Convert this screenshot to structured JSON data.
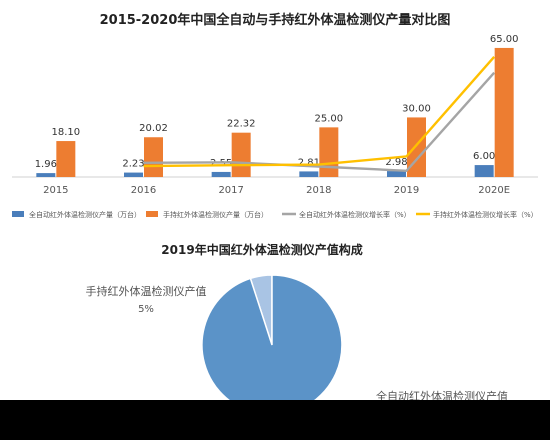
{
  "chart_data": [
    {
      "type": "bar",
      "title": "2015-2020年中国全自动与手持红外体温检测仪产量对比图",
      "categories": [
        "2015",
        "2016",
        "2017",
        "2018",
        "2019",
        "2020E"
      ],
      "series": [
        {
          "name": "全自动红外体温检测仪产量（万台）",
          "kind": "bar",
          "color": "#4a7ebb",
          "values": [
            1.96,
            2.23,
            2.55,
            2.81,
            2.98,
            6.0
          ]
        },
        {
          "name": "手持红外体温检测仪产量（万台）",
          "kind": "bar",
          "color": "#ed7d31",
          "values": [
            18.1,
            20.02,
            22.32,
            25.0,
            30.0,
            65.0
          ]
        },
        {
          "name": "全自动红外体温检测仪增长率（%）",
          "kind": "line",
          "color": "#a5a5a5",
          "values": [
            null,
            0.138,
            0.143,
            0.102,
            0.06,
            1.013
          ]
        },
        {
          "name": "手持红外体温检测仪增长率（%）",
          "kind": "line",
          "color": "#ffc000",
          "values": [
            null,
            0.106,
            0.115,
            0.12,
            0.2,
            1.167
          ]
        }
      ],
      "data_labels": {
        "s0": [
          "1.96",
          "2.23",
          "2.55",
          "2.81",
          "2.98",
          "6.00"
        ],
        "s1": [
          "18.10",
          "20.02",
          "22.32",
          "25.00",
          "30.00",
          "65.00"
        ]
      },
      "ylim": [
        0,
        70
      ],
      "y2lim": [
        0,
        1.35
      ],
      "grid": false,
      "legend_position": "bottom"
    },
    {
      "type": "pie",
      "title": "2019年中国红外体温检测仪产值构成",
      "slices": [
        {
          "name": "手持红外体温检测仪产值",
          "value": 5,
          "label": "5%",
          "color": "#a9c4e4"
        },
        {
          "name": "全自动红外体温检测仪产值",
          "value": 95,
          "label": "",
          "color": "#5b93c8"
        }
      ]
    }
  ]
}
